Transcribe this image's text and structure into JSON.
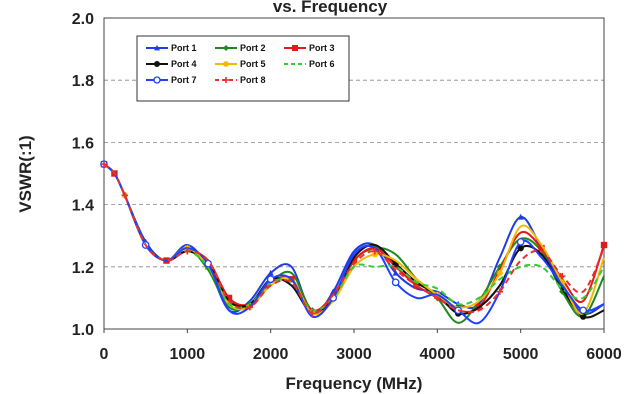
{
  "chart_data": {
    "type": "line",
    "title": "vs. Frequency",
    "xlabel": "Frequency (MHz)",
    "ylabel": "VSWR(:1)",
    "xlim": [
      0,
      6000
    ],
    "ylim": [
      1.0,
      2.0
    ],
    "xticks": [
      0,
      1000,
      2000,
      3000,
      4000,
      5000,
      6000
    ],
    "yticks": [
      "1.0",
      "1.2",
      "1.4",
      "1.6",
      "1.8",
      "2.0"
    ],
    "grid": "horizontal dashed",
    "legend_position": "top-left (inside plot)",
    "x": [
      0,
      125,
      250,
      500,
      750,
      1000,
      1250,
      1500,
      1750,
      2000,
      2250,
      2500,
      2750,
      3000,
      3250,
      3500,
      3750,
      4000,
      4250,
      4500,
      4750,
      5000,
      5250,
      5500,
      5750,
      6000
    ],
    "series": [
      {
        "name": "Port 1",
        "color": "#1f3de0",
        "marker": "triangle",
        "dash": "solid",
        "values": [
          1.53,
          1.5,
          1.43,
          1.28,
          1.22,
          1.27,
          1.2,
          1.06,
          1.09,
          1.18,
          1.2,
          1.05,
          1.12,
          1.25,
          1.27,
          1.18,
          1.13,
          1.12,
          1.08,
          1.08,
          1.23,
          1.36,
          1.26,
          1.14,
          1.05,
          1.08
        ]
      },
      {
        "name": "Port 2",
        "color": "#1e8a1e",
        "marker": "diamond",
        "dash": "solid",
        "values": [
          1.53,
          1.5,
          1.43,
          1.27,
          1.22,
          1.26,
          1.19,
          1.07,
          1.08,
          1.15,
          1.18,
          1.06,
          1.1,
          1.22,
          1.26,
          1.24,
          1.16,
          1.1,
          1.02,
          1.09,
          1.2,
          1.29,
          1.25,
          1.12,
          1.04,
          1.17
        ]
      },
      {
        "name": "Port 3",
        "color": "#e41a1a",
        "marker": "square",
        "dash": "solid",
        "values": [
          1.53,
          1.5,
          1.43,
          1.27,
          1.22,
          1.25,
          1.22,
          1.1,
          1.08,
          1.15,
          1.16,
          1.06,
          1.11,
          1.22,
          1.26,
          1.2,
          1.14,
          1.1,
          1.06,
          1.07,
          1.19,
          1.31,
          1.26,
          1.16,
          1.09,
          1.27
        ]
      },
      {
        "name": "Port 4",
        "color": "#111111",
        "marker": "circle",
        "dash": "solid",
        "values": [
          1.53,
          1.5,
          1.43,
          1.27,
          1.22,
          1.25,
          1.21,
          1.09,
          1.08,
          1.16,
          1.14,
          1.05,
          1.1,
          1.23,
          1.27,
          1.21,
          1.15,
          1.11,
          1.05,
          1.07,
          1.14,
          1.26,
          1.24,
          1.13,
          1.04,
          1.06
        ]
      },
      {
        "name": "Port 5",
        "color": "#f5b800",
        "marker": "asterisk",
        "dash": "solid",
        "values": [
          1.53,
          1.5,
          1.43,
          1.27,
          1.22,
          1.26,
          1.2,
          1.08,
          1.07,
          1.14,
          1.16,
          1.05,
          1.09,
          1.2,
          1.24,
          1.22,
          1.16,
          1.11,
          1.07,
          1.09,
          1.18,
          1.33,
          1.27,
          1.15,
          1.05,
          1.23
        ]
      },
      {
        "name": "Port 6",
        "color": "#33cc33",
        "marker": "none",
        "dash": "dashed",
        "values": [
          1.53,
          1.5,
          1.43,
          1.27,
          1.22,
          1.25,
          1.2,
          1.08,
          1.08,
          1.15,
          1.15,
          1.06,
          1.1,
          1.2,
          1.2,
          1.2,
          1.15,
          1.13,
          1.08,
          1.1,
          1.16,
          1.2,
          1.2,
          1.13,
          1.1,
          1.2
        ]
      },
      {
        "name": "Port 7",
        "color": "#2040ff",
        "marker": "open-circle",
        "dash": "solid",
        "values": [
          1.53,
          1.5,
          1.43,
          1.27,
          1.22,
          1.26,
          1.21,
          1.06,
          1.07,
          1.16,
          1.16,
          1.04,
          1.1,
          1.24,
          1.26,
          1.15,
          1.1,
          1.11,
          1.06,
          1.02,
          1.12,
          1.28,
          1.23,
          1.14,
          1.06,
          1.08
        ]
      },
      {
        "name": "Port 8",
        "color": "#e83030",
        "marker": "cross",
        "dash": "dashed",
        "values": [
          1.53,
          1.5,
          1.43,
          1.27,
          1.22,
          1.25,
          1.22,
          1.09,
          1.07,
          1.14,
          1.15,
          1.05,
          1.11,
          1.21,
          1.25,
          1.19,
          1.14,
          1.1,
          1.06,
          1.06,
          1.12,
          1.22,
          1.25,
          1.17,
          1.12,
          1.26
        ]
      }
    ]
  }
}
